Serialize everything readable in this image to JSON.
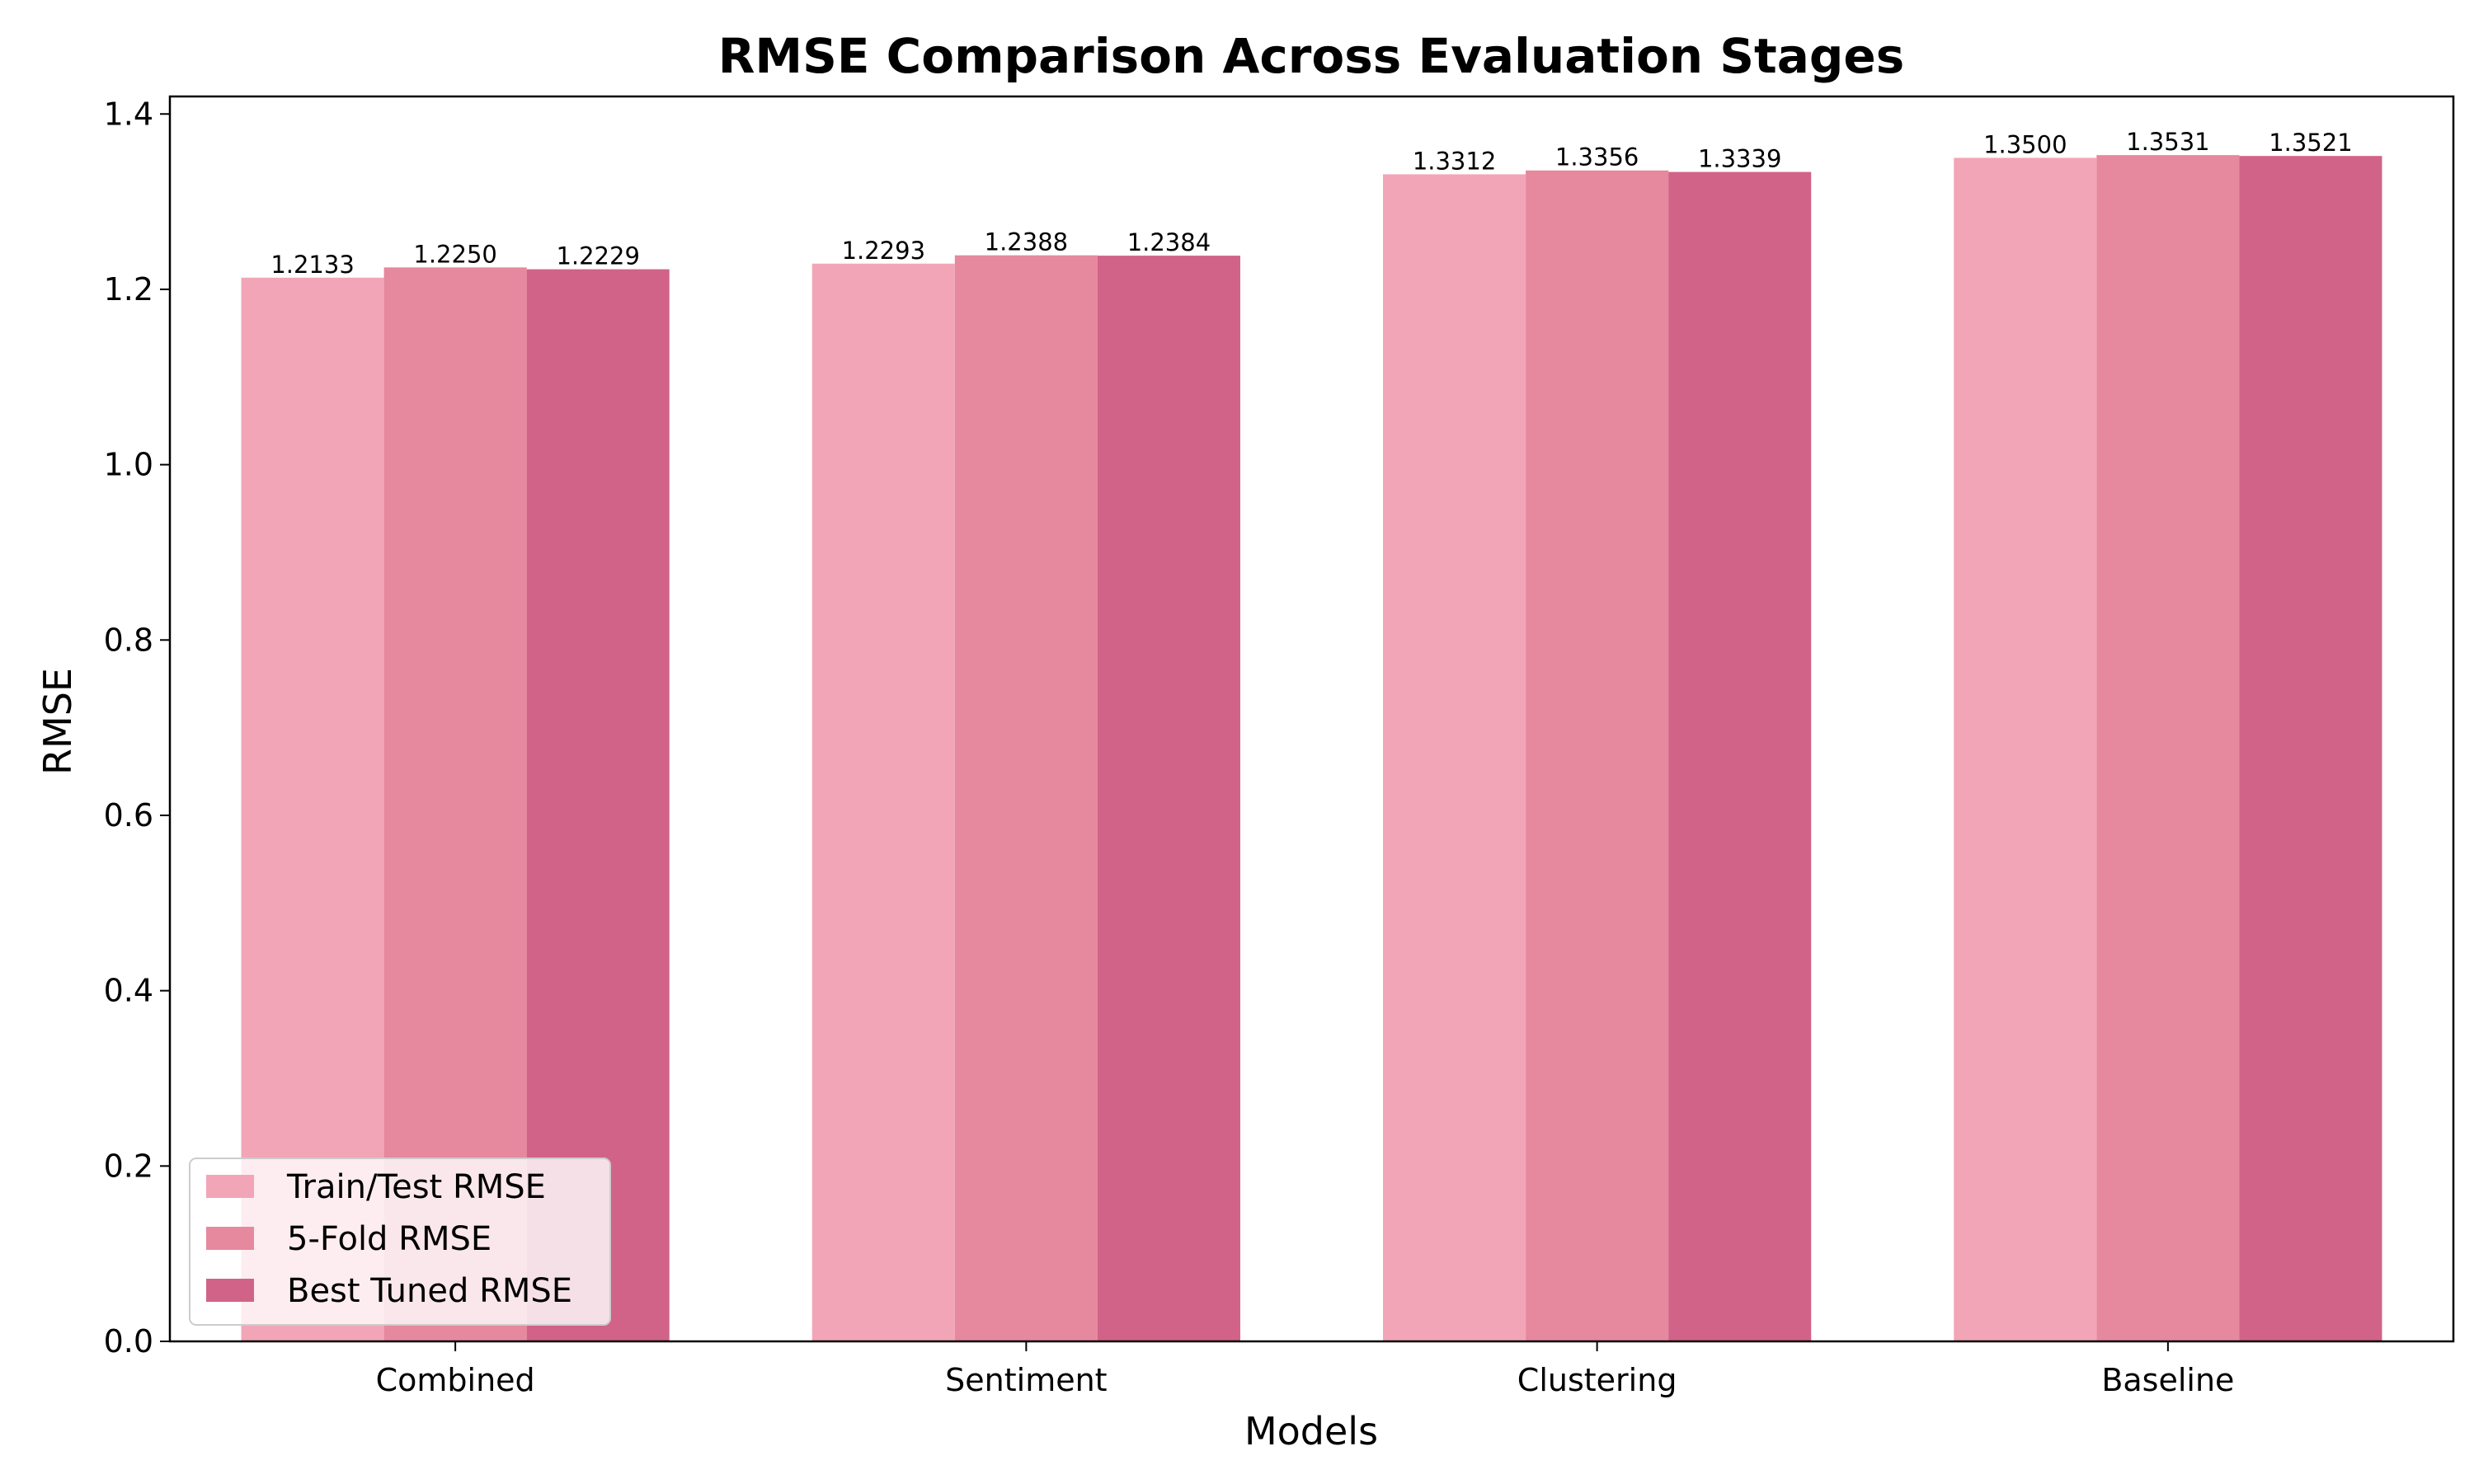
{
  "chart_data": {
    "type": "bar",
    "title": "RMSE Comparison Across Evaluation Stages",
    "xlabel": "Models",
    "ylabel": "RMSE",
    "categories": [
      "Combined",
      "Sentiment",
      "Clustering",
      "Baseline"
    ],
    "series": [
      {
        "name": "Train/Test RMSE",
        "color": "#f2a5b7",
        "values": [
          1.2133,
          1.2293,
          1.3312,
          1.35
        ],
        "labels": [
          "1.2133",
          "1.2293",
          "1.3312",
          "1.3500"
        ]
      },
      {
        "name": "5-Fold RMSE",
        "color": "#e6889e",
        "values": [
          1.225,
          1.2388,
          1.3356,
          1.3531
        ],
        "labels": [
          "1.2250",
          "1.2388",
          "1.3356",
          "1.3531"
        ]
      },
      {
        "name": "Best Tuned RMSE",
        "color": "#d16388",
        "values": [
          1.2229,
          1.2384,
          1.3339,
          1.3521
        ],
        "labels": [
          "1.2229",
          "1.2384",
          "1.3339",
          "1.3521"
        ]
      }
    ],
    "ylim": [
      0,
      1.42
    ],
    "yticks": [
      0.0,
      0.2,
      0.4,
      0.6,
      0.8,
      1.0,
      1.2,
      1.4
    ],
    "ytick_labels": [
      "0.0",
      "0.2",
      "0.4",
      "0.6",
      "0.8",
      "1.0",
      "1.2",
      "1.4"
    ],
    "grid": false,
    "legend_position": "lower-left"
  }
}
